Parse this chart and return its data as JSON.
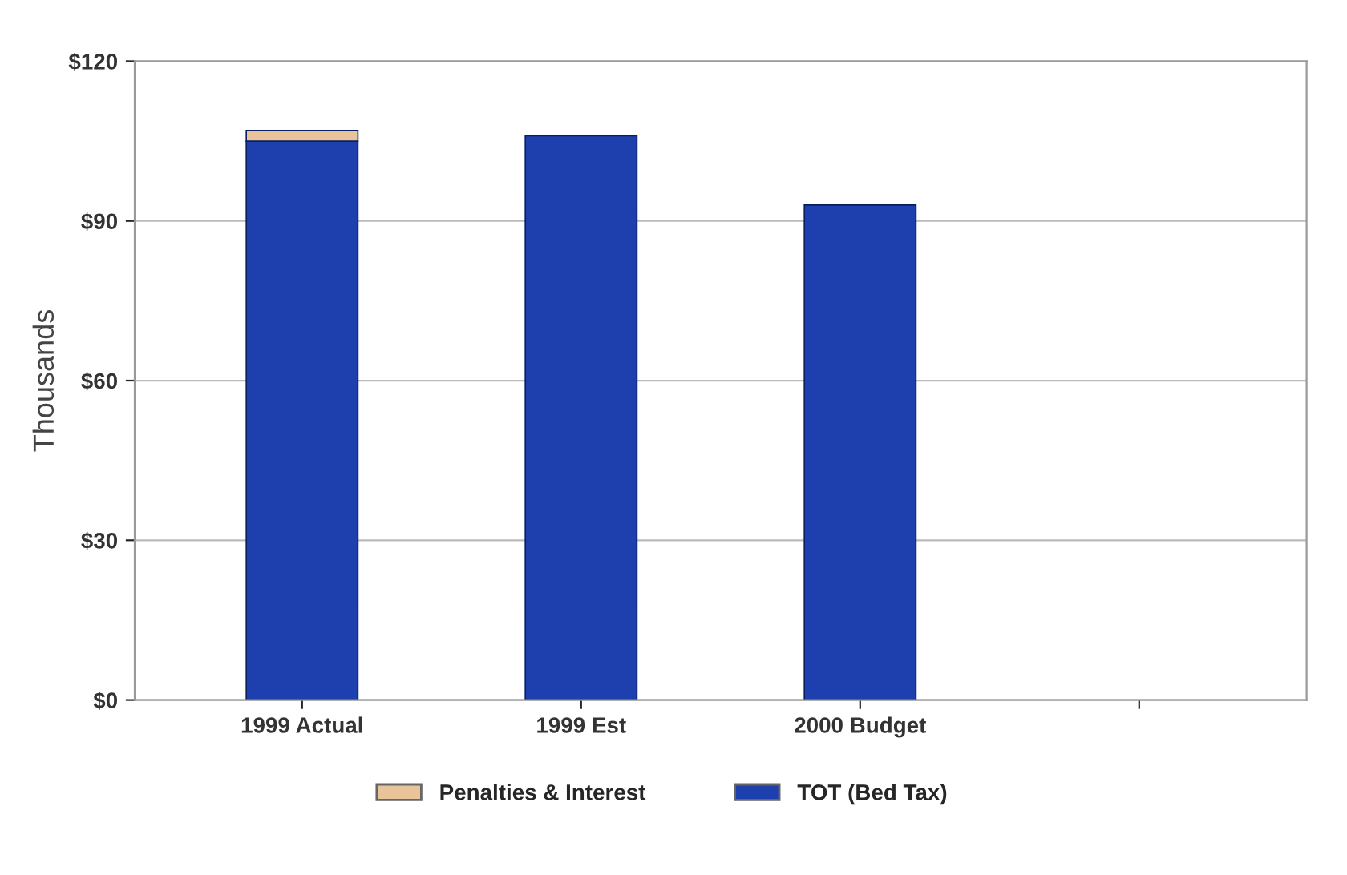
{
  "chart_data": {
    "type": "bar",
    "ylabel": "Thousands",
    "stacked": true,
    "categories": [
      "1999 Actual",
      "1999 Est",
      "2000 Budget",
      null
    ],
    "series": [
      {
        "name": "TOT (Bed Tax)",
        "color": "#1e3fae",
        "values": [
          105,
          106,
          93,
          null
        ]
      },
      {
        "name": "Penalties & Interest",
        "color": "#e9c49a",
        "values": [
          2,
          null,
          null,
          null
        ]
      }
    ],
    "ylim": [
      0,
      120
    ],
    "yticks": [
      {
        "value": 0,
        "label": "$0"
      },
      {
        "value": 30,
        "label": "$30"
      },
      {
        "value": 60,
        "label": "$60"
      },
      {
        "value": 90,
        "label": "$90"
      },
      {
        "value": 120,
        "label": "$120"
      }
    ],
    "grid": "y",
    "legend": "bottom"
  }
}
